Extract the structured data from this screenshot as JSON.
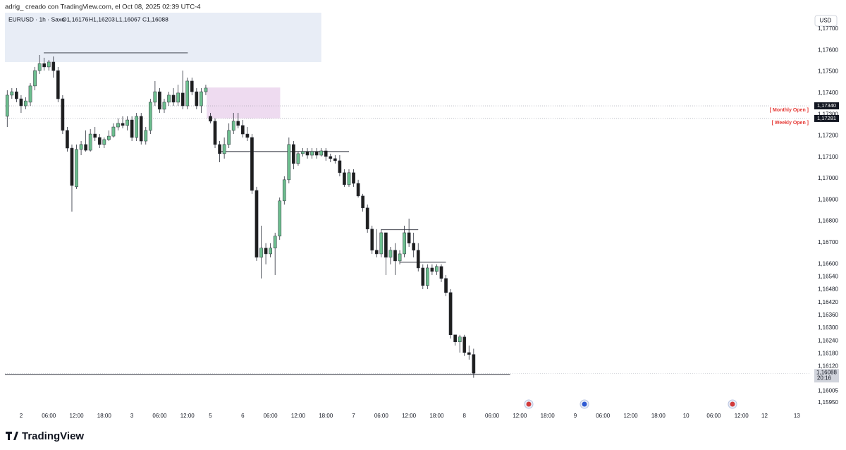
{
  "header": "adrig_ creado con TradingView.com, el Oct 08, 2025 02:39 UTC-4",
  "brand": "TradingView",
  "chart_data": {
    "type": "candlestick",
    "symbol": "EURUSD · 1h · Saxo",
    "ohlc_legend": [
      "O1,16176",
      "H1,16203",
      "L1,16067",
      "C1,16088"
    ],
    "currency": "USD",
    "up_color": "#6dbf8f",
    "down_color": "#1e1e1e",
    "ylim": [
      1.15861,
      1.17776
    ],
    "xlim": [
      -0.5,
      174
    ],
    "grid": false,
    "yticks": [
      {
        "value": 1.177,
        "label": "1,17700"
      },
      {
        "value": 1.176,
        "label": "1,17600"
      },
      {
        "value": 1.175,
        "label": "1,17500"
      },
      {
        "value": 1.174,
        "label": "1,17400"
      },
      {
        "value": 1.173,
        "label": "1,17300"
      },
      {
        "value": 1.172,
        "label": "1,17200"
      },
      {
        "value": 1.171,
        "label": "1,17100"
      },
      {
        "value": 1.17,
        "label": "1,17000"
      },
      {
        "value": 1.169,
        "label": "1,16900"
      },
      {
        "value": 1.168,
        "label": "1,16800"
      },
      {
        "value": 1.167,
        "label": "1,16700"
      },
      {
        "value": 1.166,
        "label": "1,16600"
      },
      {
        "value": 1.1654,
        "label": "1,16540"
      },
      {
        "value": 1.1648,
        "label": "1,16480"
      },
      {
        "value": 1.1642,
        "label": "1,16420"
      },
      {
        "value": 1.1636,
        "label": "1,16360"
      },
      {
        "value": 1.163,
        "label": "1,16300"
      },
      {
        "value": 1.1624,
        "label": "1,16240"
      },
      {
        "value": 1.1618,
        "label": "1,16180"
      },
      {
        "value": 1.1612,
        "label": "1,16120"
      },
      {
        "value": 1.16005,
        "label": "1,16005"
      },
      {
        "value": 1.1595,
        "label": "1,15950"
      }
    ],
    "xticks": [
      {
        "value": 3,
        "label": "2"
      },
      {
        "value": 9,
        "label": "06:00"
      },
      {
        "value": 15,
        "label": "12:00"
      },
      {
        "value": 21,
        "label": "18:00"
      },
      {
        "value": 27,
        "label": "3"
      },
      {
        "value": 33,
        "label": "06:00"
      },
      {
        "value": 39,
        "label": "12:00"
      },
      {
        "value": 44,
        "label": "5"
      },
      {
        "value": 51,
        "label": "6"
      },
      {
        "value": 57,
        "label": "06:00"
      },
      {
        "value": 63,
        "label": "12:00"
      },
      {
        "value": 69,
        "label": "18:00"
      },
      {
        "value": 75,
        "label": "7"
      },
      {
        "value": 81,
        "label": "06:00"
      },
      {
        "value": 87,
        "label": "12:00"
      },
      {
        "value": 93,
        "label": "18:00"
      },
      {
        "value": 99,
        "label": "8"
      },
      {
        "value": 105,
        "label": "06:00"
      },
      {
        "value": 111,
        "label": "12:00"
      },
      {
        "value": 117,
        "label": "18:00"
      },
      {
        "value": 123,
        "label": "9"
      },
      {
        "value": 129,
        "label": "06:00"
      },
      {
        "value": 135,
        "label": "12:00"
      },
      {
        "value": 141,
        "label": "18:00"
      },
      {
        "value": 147,
        "label": "10"
      },
      {
        "value": 153,
        "label": "06:00"
      },
      {
        "value": 159,
        "label": "12:00"
      },
      {
        "value": 164,
        "label": "12"
      },
      {
        "value": 171,
        "label": "13"
      }
    ],
    "open": [
      1.17291,
      1.1739,
      1.17406,
      1.17373,
      1.1734,
      1.17357,
      1.17433,
      1.17505,
      1.17538,
      1.17522,
      1.17545,
      1.17505,
      1.17373,
      1.17225,
      1.17142,
      1.16961,
      1.17136,
      1.17159,
      1.17132,
      1.17208,
      1.17192,
      1.17159,
      1.17182,
      1.17198,
      1.17241,
      1.17258,
      1.17248,
      1.17274,
      1.17192,
      1.17291,
      1.17175,
      1.17225,
      1.17357,
      1.17406,
      1.17324,
      1.17357,
      1.1739,
      1.17357,
      1.174,
      1.1734,
      1.17456,
      1.17406,
      1.1734,
      1.17406,
      1.17291,
      1.17268,
      1.17159,
      1.17116,
      1.17159,
      1.17225,
      1.17268,
      1.17248,
      1.17208,
      1.17192,
      1.16944,
      1.16631,
      1.16674,
      1.16647,
      1.16674,
      1.1673,
      1.16895,
      1.16994,
      1.17159,
      1.1707,
      1.17116,
      1.17126,
      1.17109,
      1.17126,
      1.17109,
      1.17129,
      1.17103,
      1.17093,
      1.17083,
      1.17027,
      1.16971,
      1.17027,
      1.16977,
      1.16918,
      1.16862,
      1.16763,
      1.16664,
      1.16647,
      1.16746,
      1.16631,
      1.16664,
      1.16614,
      1.16647,
      1.16746,
      1.16697,
      1.16664,
      1.16581,
      1.16499,
      1.16581,
      1.16565,
      1.16588,
      1.16532,
      1.16466,
      1.16268,
      1.16235,
      1.16258,
      1.16185,
      1.16176
    ],
    "high": [
      1.17413,
      1.17423,
      1.17423,
      1.1739,
      1.1738,
      1.17446,
      1.17522,
      1.17578,
      1.17565,
      1.17555,
      1.17571,
      1.17522,
      1.1739,
      1.17241,
      1.17159,
      1.17159,
      1.17175,
      1.17225,
      1.17231,
      1.17241,
      1.17208,
      1.17192,
      1.17225,
      1.17258,
      1.17281,
      1.17291,
      1.17291,
      1.17291,
      1.17307,
      1.17307,
      1.17241,
      1.17373,
      1.17456,
      1.17423,
      1.17373,
      1.17406,
      1.17423,
      1.17439,
      1.17505,
      1.17472,
      1.17472,
      1.17423,
      1.17423,
      1.17439,
      1.17307,
      1.17281,
      1.17175,
      1.17192,
      1.17258,
      1.17307,
      1.17307,
      1.17274,
      1.17241,
      1.17208,
      1.16961,
      1.16779,
      1.16697,
      1.16697,
      1.16746,
      1.16911,
      1.1701,
      1.17192,
      1.17175,
      1.17126,
      1.17142,
      1.17142,
      1.17142,
      1.17142,
      1.17142,
      1.17142,
      1.17116,
      1.17109,
      1.17109,
      1.17043,
      1.17043,
      1.17043,
      1.16994,
      1.16928,
      1.16878,
      1.16779,
      1.16763,
      1.16763,
      1.16746,
      1.1668,
      1.16697,
      1.16664,
      1.16779,
      1.16812,
      1.16746,
      1.16697,
      1.16598,
      1.16598,
      1.16598,
      1.16598,
      1.16598,
      1.16548,
      1.16482,
      1.16268,
      1.16268,
      1.16268,
      1.16218,
      1.16203
    ],
    "low": [
      1.17241,
      1.17373,
      1.17357,
      1.17307,
      1.17324,
      1.1734,
      1.17413,
      1.17489,
      1.17505,
      1.17505,
      1.17472,
      1.17357,
      1.17208,
      1.17126,
      1.16845,
      1.16951,
      1.17109,
      1.17126,
      1.17126,
      1.17175,
      1.17142,
      1.17142,
      1.17175,
      1.17192,
      1.17225,
      1.17235,
      1.17225,
      1.17175,
      1.17175,
      1.17159,
      1.17159,
      1.17208,
      1.1734,
      1.17307,
      1.17307,
      1.1734,
      1.1734,
      1.1734,
      1.17324,
      1.17324,
      1.1739,
      1.17324,
      1.17307,
      1.1739,
      1.17258,
      1.17142,
      1.17076,
      1.17093,
      1.17142,
      1.17208,
      1.17235,
      1.17192,
      1.17175,
      1.16928,
      1.16614,
      1.16532,
      1.16598,
      1.16631,
      1.16548,
      1.16713,
      1.16878,
      1.16977,
      1.17043,
      1.1706,
      1.17103,
      1.17093,
      1.17093,
      1.17093,
      1.17103,
      1.17083,
      1.17076,
      1.1707,
      1.1701,
      1.16961,
      1.16961,
      1.16961,
      1.16911,
      1.16845,
      1.16746,
      1.16647,
      1.16631,
      1.16631,
      1.16548,
      1.16598,
      1.16548,
      1.16598,
      1.16631,
      1.1668,
      1.16631,
      1.16565,
      1.16482,
      1.16482,
      1.16548,
      1.16548,
      1.16515,
      1.16449,
      1.16251,
      1.16218,
      1.16185,
      1.16169,
      1.16152,
      1.16067
    ],
    "close": [
      1.1739,
      1.17406,
      1.17373,
      1.1734,
      1.17363,
      1.17433,
      1.17505,
      1.17538,
      1.17522,
      1.17545,
      1.17505,
      1.17373,
      1.17225,
      1.17142,
      1.16967,
      1.17136,
      1.17159,
      1.17132,
      1.17208,
      1.17192,
      1.17159,
      1.17182,
      1.17198,
      1.17241,
      1.17258,
      1.17248,
      1.17274,
      1.17192,
      1.17291,
      1.17175,
      1.17225,
      1.17357,
      1.17406,
      1.17324,
      1.17357,
      1.1739,
      1.17357,
      1.174,
      1.1734,
      1.17456,
      1.17406,
      1.1734,
      1.17406,
      1.17423,
      1.17268,
      1.17159,
      1.17116,
      1.17159,
      1.17225,
      1.17268,
      1.17248,
      1.17208,
      1.17192,
      1.16944,
      1.16631,
      1.16674,
      1.16647,
      1.16674,
      1.1673,
      1.16895,
      1.16994,
      1.17159,
      1.1707,
      1.17116,
      1.17126,
      1.17109,
      1.17126,
      1.17109,
      1.17129,
      1.17103,
      1.17093,
      1.17083,
      1.17027,
      1.16971,
      1.17027,
      1.16977,
      1.16918,
      1.16862,
      1.16763,
      1.16664,
      1.16647,
      1.16746,
      1.16631,
      1.16664,
      1.16614,
      1.16647,
      1.16746,
      1.16697,
      1.16664,
      1.16581,
      1.16499,
      1.16581,
      1.16565,
      1.16588,
      1.16532,
      1.16466,
      1.16268,
      1.16235,
      1.16258,
      1.16185,
      1.16176,
      1.16088
    ],
    "levels": [
      {
        "name": "[ Monthly Open ]",
        "value": 1.1734,
        "label": "1,17340"
      },
      {
        "name": "[ Weekly Open ]",
        "value": 1.17281,
        "label": "1,17281"
      }
    ],
    "last_price": {
      "value": 1.16088,
      "label": "1,16088",
      "countdown": "20:16"
    },
    "zones": [
      {
        "x": [
          -0.5,
          68
        ],
        "y": [
          1.17776,
          1.17545
        ],
        "color": "#e8edf6"
      },
      {
        "x": [
          43.2,
          59.1
        ],
        "y": [
          1.17426,
          1.17281
        ],
        "color": "#eedbf0"
      }
    ],
    "lines": [
      {
        "x": [
          7.9,
          39.1
        ],
        "y": 1.17588
      },
      {
        "x": [
          46.3,
          74
        ],
        "y": 1.17126
      },
      {
        "x": [
          81,
          89
        ],
        "y": 1.1676
      },
      {
        "x": [
          85,
          95
        ],
        "y": 1.16608
      },
      {
        "x": [
          -0.5,
          108.9
        ],
        "y": 1.16083
      }
    ]
  }
}
